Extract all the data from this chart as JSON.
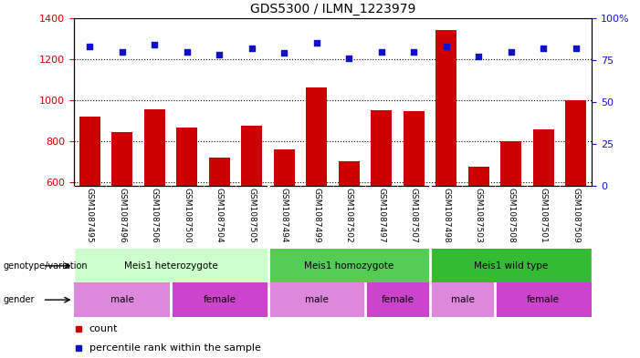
{
  "title": "GDS5300 / ILMN_1223979",
  "samples": [
    "GSM1087495",
    "GSM1087496",
    "GSM1087506",
    "GSM1087500",
    "GSM1087504",
    "GSM1087505",
    "GSM1087494",
    "GSM1087499",
    "GSM1087502",
    "GSM1087497",
    "GSM1087507",
    "GSM1087498",
    "GSM1087503",
    "GSM1087508",
    "GSM1087501",
    "GSM1087509"
  ],
  "count_values": [
    920,
    845,
    955,
    865,
    720,
    875,
    760,
    1060,
    700,
    950,
    945,
    1340,
    675,
    800,
    855,
    1000
  ],
  "percentile_values": [
    83,
    80,
    84,
    80,
    78,
    82,
    79,
    85,
    76,
    80,
    80,
    83,
    77,
    80,
    82,
    82
  ],
  "bar_color": "#cc0000",
  "dot_color": "#1111cc",
  "ylim_left": [
    580,
    1400
  ],
  "ylim_right": [
    0,
    100
  ],
  "yticks_left": [
    600,
    800,
    1000,
    1200,
    1400
  ],
  "yticks_right": [
    0,
    25,
    50,
    75,
    100
  ],
  "yticklabels_right": [
    "0",
    "25",
    "50",
    "75",
    "100%"
  ],
  "genotype_groups": [
    {
      "label": "Meis1 heterozygote",
      "start": 0,
      "end": 6,
      "color": "#ccffcc"
    },
    {
      "label": "Meis1 homozygote",
      "start": 6,
      "end": 11,
      "color": "#55cc55"
    },
    {
      "label": "Meis1 wild type",
      "start": 11,
      "end": 16,
      "color": "#33bb33"
    }
  ],
  "gender_groups": [
    {
      "label": "male",
      "start": 0,
      "end": 3,
      "color": "#dd88dd"
    },
    {
      "label": "female",
      "start": 3,
      "end": 6,
      "color": "#cc44cc"
    },
    {
      "label": "male",
      "start": 6,
      "end": 9,
      "color": "#dd88dd"
    },
    {
      "label": "female",
      "start": 9,
      "end": 11,
      "color": "#cc44cc"
    },
    {
      "label": "male",
      "start": 11,
      "end": 13,
      "color": "#dd88dd"
    },
    {
      "label": "female",
      "start": 13,
      "end": 16,
      "color": "#cc44cc"
    }
  ],
  "legend_count_label": "count",
  "legend_pct_label": "percentile rank within the sample",
  "genotype_label": "genotype/variation",
  "gender_label": "gender",
  "bg_color": "#ffffff",
  "tick_bg_color": "#cccccc"
}
